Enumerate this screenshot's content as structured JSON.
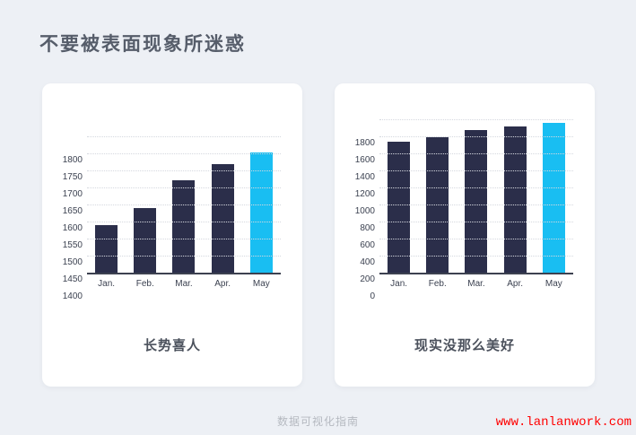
{
  "page": {
    "title": "不要被表面现象所迷惑",
    "footer_center": "数据可视化指南",
    "footer_right": "www.lanlanwork.com"
  },
  "colors": {
    "page_bg": "#edf0f5",
    "card_bg": "#ffffff",
    "bar": "#2b2e4a",
    "bar_highlight": "#19bef2",
    "axis": "#3c4150",
    "grid": "#d5d8df",
    "title_text": "#565d6a",
    "caption_text": "#4b515c",
    "footer_text": "#b5b9c0",
    "url_text": "#ff0000"
  },
  "chart_data": [
    {
      "type": "bar",
      "title": "长势喜人",
      "categories": [
        "Jan.",
        "Feb.",
        "Mar.",
        "Apr.",
        "May"
      ],
      "values": [
        1540,
        1590,
        1670,
        1718,
        1753
      ],
      "ylim": [
        1400,
        1800
      ],
      "ytick_step": 50,
      "highlight_index": 4,
      "grid": "horizontal-dotted",
      "legend": "none",
      "xlabel": "",
      "ylabel": ""
    },
    {
      "type": "bar",
      "title": "现实没那么美好",
      "categories": [
        "Jan.",
        "Feb.",
        "Mar.",
        "Apr.",
        "May"
      ],
      "values": [
        1540,
        1590,
        1670,
        1718,
        1753
      ],
      "ylim": [
        0,
        1800
      ],
      "ytick_step": 200,
      "highlight_index": 4,
      "grid": "horizontal-dotted",
      "legend": "none",
      "xlabel": "",
      "ylabel": ""
    }
  ]
}
